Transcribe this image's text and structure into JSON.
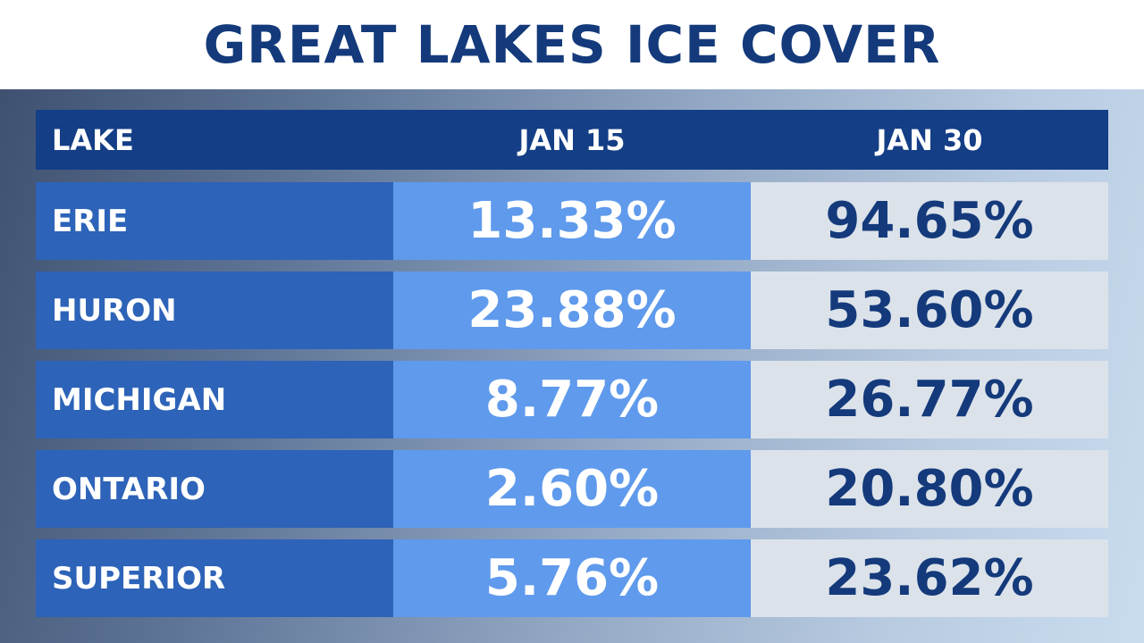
{
  "title": "GREAT LAKES ICE COVER",
  "colors": {
    "title_text": "#143a7b",
    "header_bg": "#143e86",
    "lake_cell_bg": "#2d63b8",
    "jan15_cell_bg": "#5f9aec",
    "jan30_cell_bg": "#dbe2ea",
    "jan30_text": "#143a7b"
  },
  "chart_data": {
    "type": "table",
    "title": "GREAT LAKES ICE COVER",
    "columns": [
      "LAKE",
      "JAN 15",
      "JAN 30"
    ],
    "rows": [
      {
        "lake": "ERIE",
        "jan15": "13.33%",
        "jan30": "94.65%"
      },
      {
        "lake": "HURON",
        "jan15": "23.88%",
        "jan30": "53.60%"
      },
      {
        "lake": "MICHIGAN",
        "jan15": "8.77%",
        "jan30": "26.77%"
      },
      {
        "lake": "ONTARIO",
        "jan15": "2.60%",
        "jan30": "20.80%"
      },
      {
        "lake": "SUPERIOR",
        "jan15": "5.76%",
        "jan30": "23.62%"
      }
    ]
  }
}
